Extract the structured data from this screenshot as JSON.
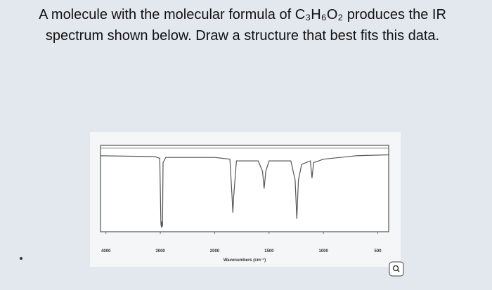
{
  "question": "A molecule with the molecular formula of C₃H₆O₂ produces the IR spectrum shown below. Draw a structure that best fits this data.",
  "chart_data": {
    "type": "line",
    "x_label": "Wavenumbers (cm⁻¹)",
    "x": [
      4100,
      3100,
      3010,
      2990,
      2980,
      2970,
      2960,
      2950,
      2900,
      2000,
      1860,
      1840,
      1833,
      1826,
      1800,
      1600,
      1560,
      1545,
      1530,
      1500,
      1300,
      1260,
      1245,
      1230,
      1200,
      1120,
      1105,
      1090,
      1000,
      700,
      400
    ],
    "series": [
      {
        "color": "#555555",
        "values": [
          88,
          87,
          85,
          10,
          5,
          12,
          6,
          80,
          86,
          86,
          84,
          40,
          22,
          40,
          82,
          82,
          70,
          50,
          70,
          82,
          82,
          60,
          15,
          60,
          78,
          82,
          62,
          80,
          84,
          88,
          89
        ]
      }
    ],
    "xlim": [
      4100,
      400
    ],
    "scale_break": 2000,
    "xticks": [
      4000,
      3000,
      2000,
      1500,
      1000,
      500
    ],
    "ylim": [
      0,
      100
    ]
  }
}
